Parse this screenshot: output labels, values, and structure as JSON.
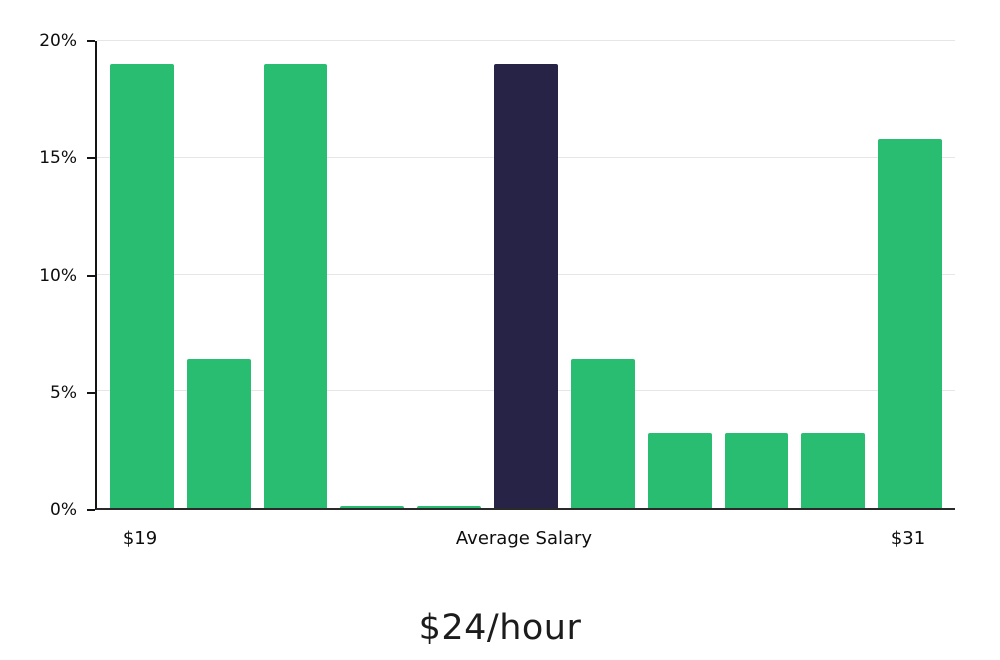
{
  "chart_data": {
    "type": "bar",
    "title": "$24/hour",
    "xlabel": "",
    "ylabel": "",
    "ylim": [
      0,
      20
    ],
    "grid": "horizontal",
    "legend": "none",
    "values": [
      19.0,
      6.4,
      19.0,
      0.1,
      0.1,
      19.0,
      6.4,
      3.2,
      3.2,
      3.2,
      15.8
    ],
    "highlight_index": 5,
    "y_ticks": [
      {
        "value": 0,
        "label": "0%"
      },
      {
        "value": 5,
        "label": "5%"
      },
      {
        "value": 10,
        "label": "10%"
      },
      {
        "value": 15,
        "label": "15%"
      },
      {
        "value": 20,
        "label": "20%"
      }
    ],
    "x_axis_labels": [
      {
        "bar_index": 0,
        "label": "$19"
      },
      {
        "bar_index": 5,
        "label": "Average Salary"
      },
      {
        "bar_index": 10,
        "label": "$31"
      }
    ],
    "colors": {
      "bar": "#29bd72",
      "highlight": "#262347",
      "grid": "#e6e6e6",
      "axis": "#141414"
    }
  }
}
